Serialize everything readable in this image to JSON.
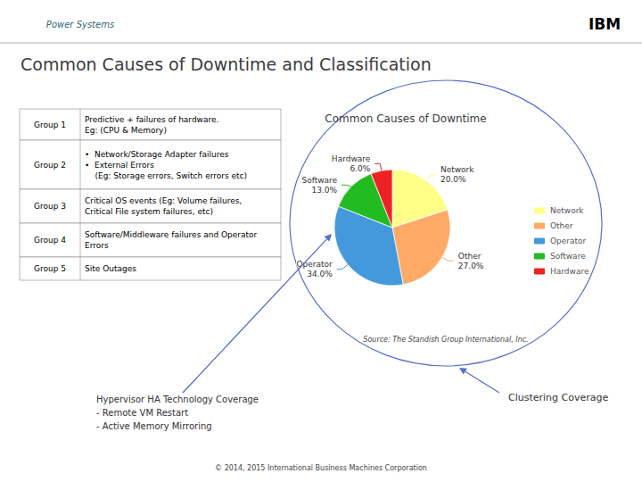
{
  "chart_data": {
    "type": "pie",
    "title": "Common Causes of Downtime and Classification",
    "subtitle": "Common Causes of Downtime",
    "categories": [
      "Network",
      "Other",
      "Operator",
      "Software",
      "Hardware"
    ],
    "values": [
      20.0,
      27.0,
      34.0,
      13.0,
      6.0
    ],
    "value_labels": [
      "20.0%",
      "27.0%",
      "34.0%",
      "13.0%",
      "6.0%"
    ],
    "colors": [
      "#FFFF88",
      "#FFAA66",
      "#4499DD",
      "#22BB22",
      "#EE2222"
    ],
    "data_labels": true,
    "legend": "right",
    "annotations": [
      "Power Systems",
      "IBM",
      "Source: The Standish Group International, Inc.",
      "Hypervisor HA Technology Coverage\n- Remote VM Restart\n- Active Memory Mirroring",
      "Clustering Coverage",
      "© 2014, 2015 International Business Machines Corporation"
    ],
    "table": [
      [
        "Group 1",
        "Predictive + failures of hardware.\nEg: (CPU & Memory)"
      ],
      [
        "Group 2",
        "•  Network/Storage Adapter failures\n•  External Errors\n    (Eg: Storage errors, Switch errors etc)"
      ],
      [
        "Group 3",
        "Critical OS events (Eg: Volume failures,\nCritical File system failures, etc)"
      ],
      [
        "Group 4",
        "Software/Middleware failures and Operator\nErrors"
      ],
      [
        "Group 5",
        "Site Outages"
      ]
    ]
  }
}
